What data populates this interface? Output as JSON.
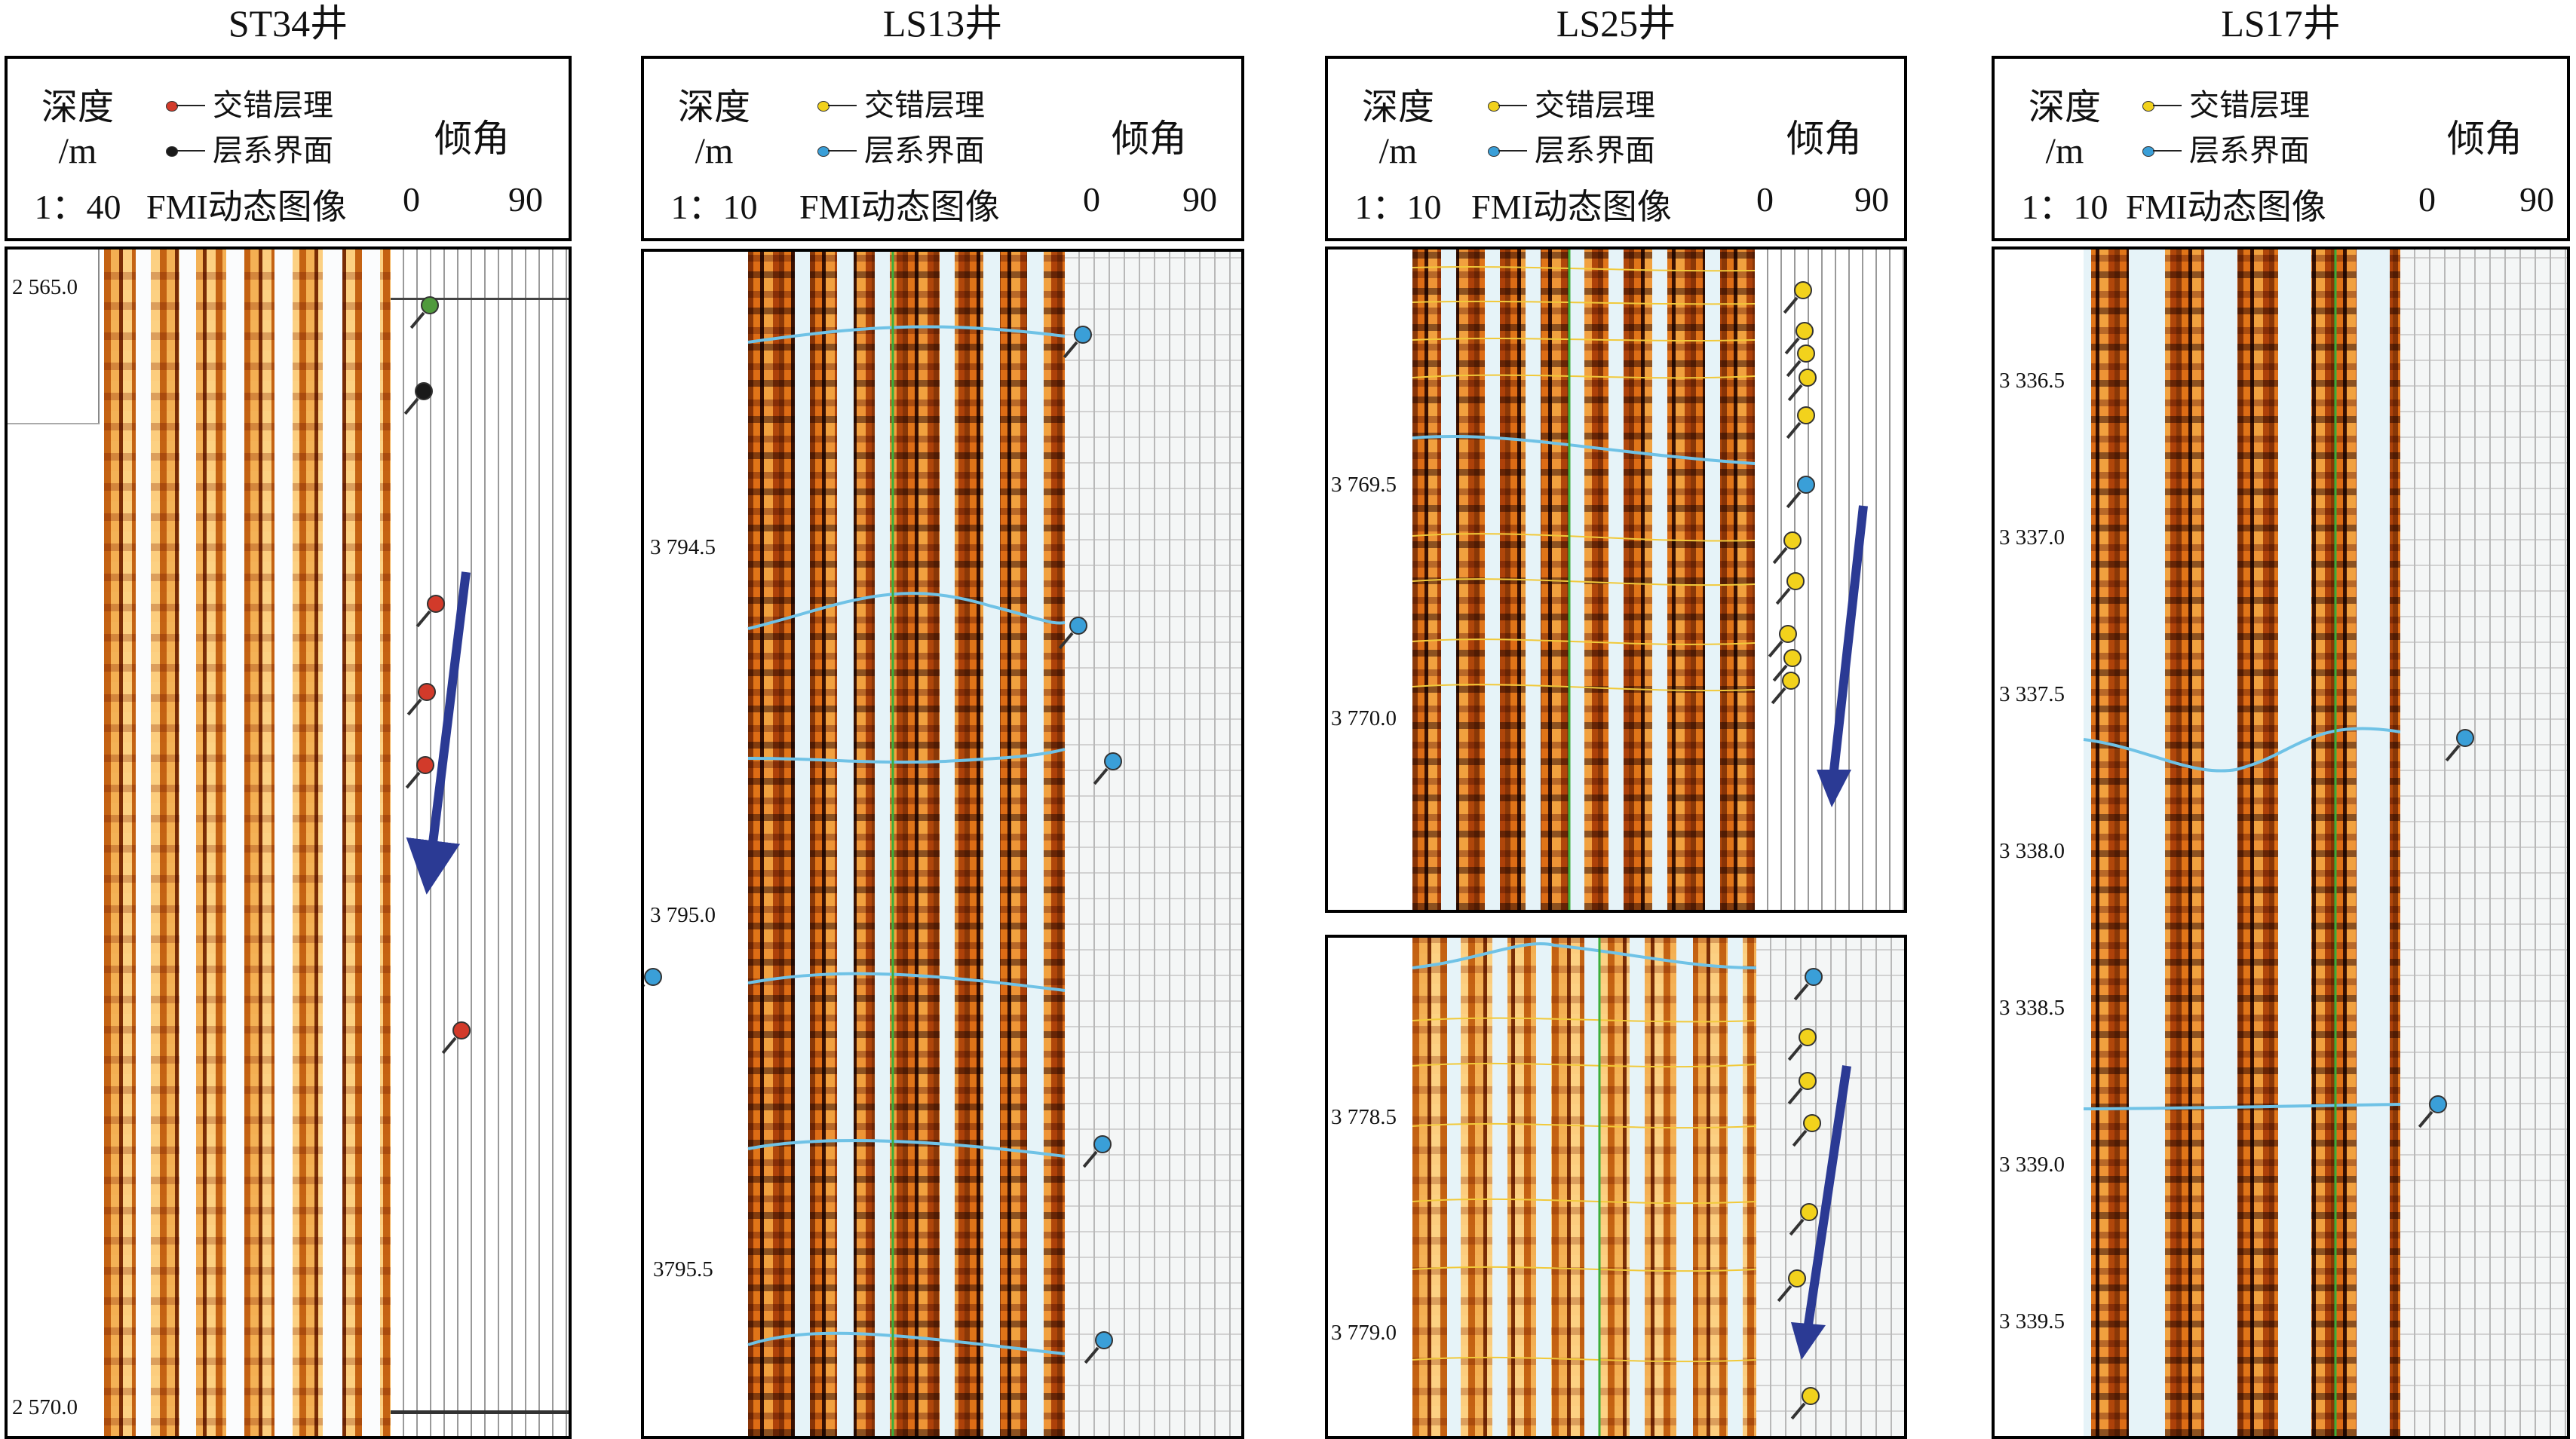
{
  "header_labels": {
    "depth": "深度",
    "depth_unit": "/m",
    "fmi": "FMI动态图像",
    "dip": "倾角",
    "dip_min": "0",
    "dip_max": "90"
  },
  "wells": [
    {
      "title": "ST34井",
      "scale": "1：40",
      "legend": [
        {
          "label": "交错层理",
          "color": "#d23a2a"
        },
        {
          "label": "层系界面",
          "color": "#1a1a1a"
        }
      ],
      "depth_ticks": [
        "2 565.0",
        "2 570.0"
      ]
    },
    {
      "title": "LS13井",
      "scale": "1：10",
      "legend": [
        {
          "label": "交错层理",
          "color": "#f2d21c"
        },
        {
          "label": "层系界面",
          "color": "#3a9fd8"
        }
      ],
      "depth_ticks": [
        "3 794.5",
        "3 795.0",
        "3795.5"
      ]
    },
    {
      "title": "LS25井",
      "scale": "1：10",
      "legend": [
        {
          "label": "交错层理",
          "color": "#f2d21c"
        },
        {
          "label": "层系界面",
          "color": "#3a9fd8"
        }
      ],
      "depth_ticks_upper": [
        "3 769.5",
        "3 770.0"
      ],
      "depth_ticks_lower": [
        "3 778.5",
        "3 779.0"
      ]
    },
    {
      "title": "LS17井",
      "scale": "1：10",
      "legend": [
        {
          "label": "交错层理",
          "color": "#f2d21c"
        },
        {
          "label": "层系界面",
          "color": "#3a9fd8"
        }
      ],
      "depth_ticks": [
        "3 336.5",
        "3 337.0",
        "3 337.5",
        "3 338.0",
        "3 338.5",
        "3 339.0",
        "3 339.5"
      ]
    }
  ],
  "colors": {
    "arrow": "#2b3a94",
    "boundary_line": "#6fc2e6",
    "bedding_line": "#f1c93a",
    "frame": "#000000"
  }
}
